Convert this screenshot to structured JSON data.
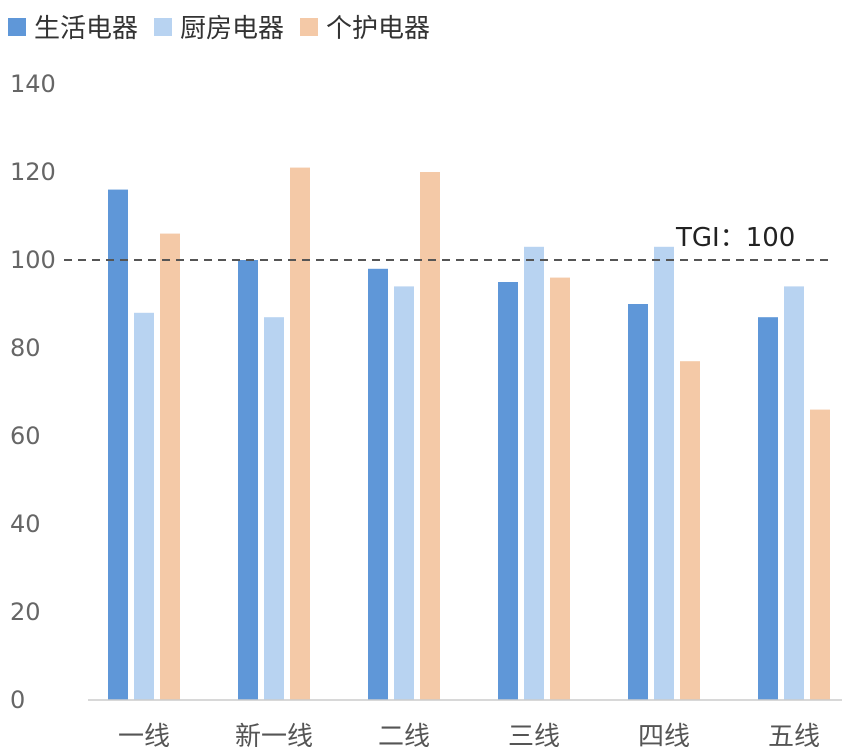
{
  "chart_data": {
    "type": "bar",
    "categories": [
      "一线",
      "新一线",
      "二线",
      "三线",
      "四线",
      "五线"
    ],
    "series": [
      {
        "name": "生活电器",
        "color": "#5f97d8",
        "values": [
          116,
          100,
          98,
          95,
          90,
          87
        ]
      },
      {
        "name": "厨房电器",
        "color": "#b8d3f1",
        "values": [
          88,
          87,
          94,
          103,
          103,
          94
        ]
      },
      {
        "name": "个护电器",
        "color": "#f4c9a7",
        "values": [
          106,
          121,
          120,
          96,
          77,
          66
        ]
      }
    ],
    "ylim": [
      0,
      140
    ],
    "yticks": [
      0,
      20,
      40,
      60,
      80,
      100,
      120,
      140
    ],
    "reference_line": {
      "value": 100,
      "label": "TGI：100"
    },
    "grid": false,
    "legend_position": "top-left"
  }
}
